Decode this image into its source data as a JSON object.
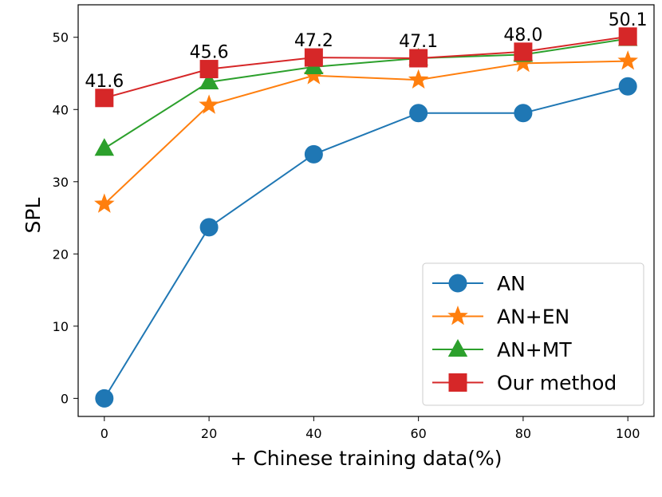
{
  "chart_data": {
    "type": "line",
    "title": "",
    "xlabel": "+ Chinese training data(%)",
    "ylabel": "SPL",
    "x": [
      0,
      20,
      40,
      60,
      80,
      100
    ],
    "xticks": [
      "0",
      "20",
      "40",
      "60",
      "80",
      "100"
    ],
    "yticks": [
      "0",
      "10",
      "20",
      "30",
      "40",
      "50"
    ],
    "xlim": [
      -5,
      105
    ],
    "ylim": [
      -2.5,
      54.5
    ],
    "grid": false,
    "legend_position": "lower-right",
    "series": [
      {
        "name": "AN",
        "values": [
          0,
          23.7,
          33.8,
          39.5,
          39.5,
          43.2
        ],
        "color": "#1f77b4",
        "marker": "circle"
      },
      {
        "name": "AN+EN",
        "values": [
          26.9,
          40.6,
          44.7,
          44.1,
          46.4,
          46.7
        ],
        "color": "#ff7f0e",
        "marker": "star"
      },
      {
        "name": "AN+MT",
        "values": [
          34.6,
          43.8,
          45.9,
          47.1,
          47.6,
          49.8
        ],
        "color": "#2ca02c",
        "marker": "triangle"
      },
      {
        "name": "Our method",
        "values": [
          41.6,
          45.6,
          47.2,
          47.1,
          48.0,
          50.1
        ],
        "color": "#d62728",
        "marker": "square"
      }
    ],
    "annotations": [
      {
        "x": 0,
        "y": 41.6,
        "text": "41.6"
      },
      {
        "x": 20,
        "y": 45.6,
        "text": "45.6"
      },
      {
        "x": 40,
        "y": 47.2,
        "text": "47.2"
      },
      {
        "x": 60,
        "y": 47.1,
        "text": "47.1"
      },
      {
        "x": 80,
        "y": 48.0,
        "text": "48.0"
      },
      {
        "x": 100,
        "y": 50.1,
        "text": "50.1"
      }
    ]
  }
}
